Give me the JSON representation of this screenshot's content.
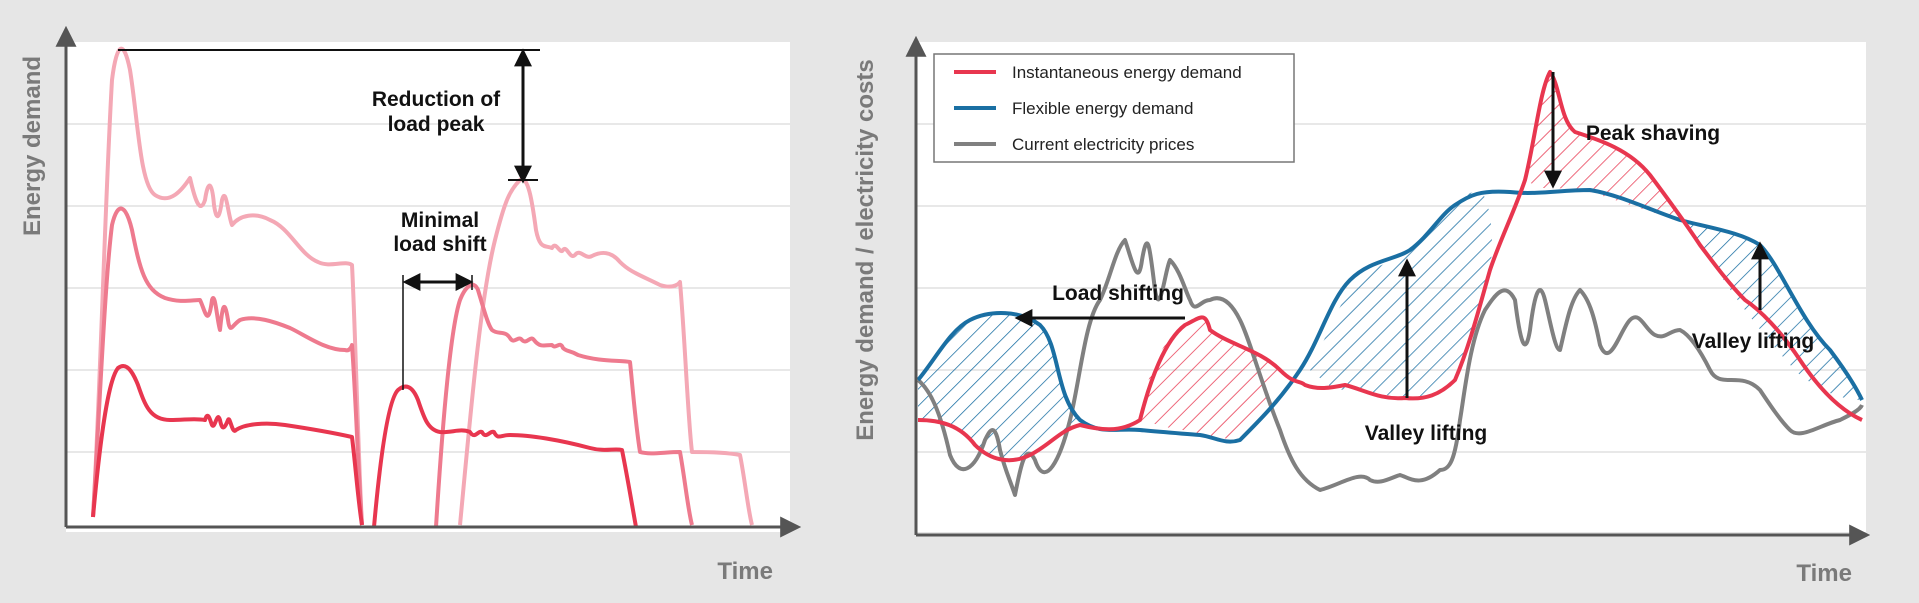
{
  "colors": {
    "page_bg": "#e6e6e6",
    "plot_bg": "#ffffff",
    "grid": "#d0d0d0",
    "axis": "#555555",
    "red": "#e8364f",
    "red_mid": "#ee7a8e",
    "red_light": "#f4a8b5",
    "blue": "#1a6fa3",
    "gray": "#808080",
    "annotation": "#111111"
  },
  "chart_data": [
    {
      "type": "line",
      "description_id": "load-peak-reduction",
      "xlabel": "Time",
      "ylabel": "Energy demand",
      "x_ticks": [],
      "y_ticks": [],
      "grid": "horizontal",
      "annotations": [
        "Reduction of load peak",
        "Minimal load shift"
      ],
      "series": [
        {
          "color": "#e8364f",
          "x": [
            0,
            0.04,
            0.08,
            0.15,
            0.25,
            0.35,
            0.38,
            0.4,
            0.44,
            0.48,
            0.52,
            0.56,
            0.6,
            0.68,
            0.75,
            0.78,
            0.8
          ],
          "y": [
            0,
            0.3,
            0.34,
            0.25,
            0.22,
            0.2,
            0,
            0.26,
            0.22,
            0.2,
            0.19,
            0.18,
            0.17,
            0.15,
            0.13,
            0.1,
            0
          ]
        },
        {
          "color": "#ee7a8e",
          "x": [
            0,
            0.04,
            0.08,
            0.15,
            0.25,
            0.35,
            0.38,
            0.44,
            0.5,
            0.54,
            0.6,
            0.64,
            0.7,
            0.76,
            0.8
          ],
          "y": [
            0,
            0.6,
            0.66,
            0.44,
            0.4,
            0.38,
            0,
            0.48,
            0.5,
            0.4,
            0.36,
            0.34,
            0.32,
            0.28,
            0
          ]
        },
        {
          "color": "#f4a8b5",
          "x": [
            0,
            0.04,
            0.08,
            0.15,
            0.25,
            0.35,
            0.38,
            0.5,
            0.56,
            0.6,
            0.66,
            0.72,
            0.8,
            0.88,
            0.92
          ],
          "y": [
            0,
            0.98,
            1.0,
            0.7,
            0.64,
            0.56,
            0,
            0.58,
            0.72,
            0.66,
            0.6,
            0.52,
            0.46,
            0.4,
            0
          ]
        }
      ]
    },
    {
      "type": "line",
      "description_id": "flexible-demand",
      "xlabel": "Time",
      "ylabel": "Energy demand / electricity costs",
      "x_ticks": [],
      "y_ticks": [],
      "grid": "horizontal",
      "legend": {
        "position": "top-left",
        "entries": [
          {
            "label": "Instantaneous energy demand",
            "color": "#e8364f"
          },
          {
            "label": "Flexible energy demand",
            "color": "#1a6fa3"
          },
          {
            "label": "Current electricity prices",
            "color": "#808080"
          }
        ]
      },
      "annotations": [
        "Load shifting",
        "Peak shaving",
        "Valley lifting",
        "Valley lifting"
      ],
      "series": [
        {
          "name": "Instantaneous energy demand",
          "color": "#e8364f",
          "x": [
            0,
            0.05,
            0.1,
            0.15,
            0.2,
            0.25,
            0.3,
            0.35,
            0.4,
            0.45,
            0.5,
            0.55,
            0.6,
            0.65,
            0.7,
            0.75,
            0.8,
            0.85,
            0.9,
            0.95,
            1.0
          ],
          "y": [
            0.25,
            0.2,
            0.15,
            0.18,
            0.26,
            0.35,
            0.45,
            0.4,
            0.35,
            0.28,
            0.3,
            0.32,
            0.45,
            0.65,
            0.95,
            0.8,
            0.72,
            0.55,
            0.42,
            0.3,
            0.22
          ]
        },
        {
          "name": "Flexible energy demand",
          "color": "#1a6fa3",
          "x": [
            0,
            0.05,
            0.1,
            0.15,
            0.2,
            0.25,
            0.3,
            0.35,
            0.4,
            0.45,
            0.5,
            0.55,
            0.6,
            0.65,
            0.7,
            0.75,
            0.8,
            0.85,
            0.9,
            0.95,
            1.0
          ],
          "y": [
            0.3,
            0.42,
            0.44,
            0.32,
            0.2,
            0.19,
            0.18,
            0.2,
            0.28,
            0.4,
            0.55,
            0.62,
            0.7,
            0.74,
            0.73,
            0.68,
            0.64,
            0.6,
            0.55,
            0.42,
            0.28
          ]
        },
        {
          "name": "Current electricity prices",
          "color": "#808080",
          "x": [
            0,
            0.05,
            0.1,
            0.15,
            0.2,
            0.25,
            0.3,
            0.35,
            0.4,
            0.45,
            0.5,
            0.55,
            0.6,
            0.65,
            0.7,
            0.75,
            0.8,
            0.85,
            0.9,
            0.95,
            1.0
          ],
          "y": [
            0.3,
            0.15,
            0.22,
            0.12,
            0.5,
            0.55,
            0.45,
            0.5,
            0.08,
            0.1,
            0.15,
            0.18,
            0.45,
            0.5,
            0.42,
            0.48,
            0.4,
            0.38,
            0.35,
            0.25,
            0.3
          ]
        }
      ]
    }
  ]
}
